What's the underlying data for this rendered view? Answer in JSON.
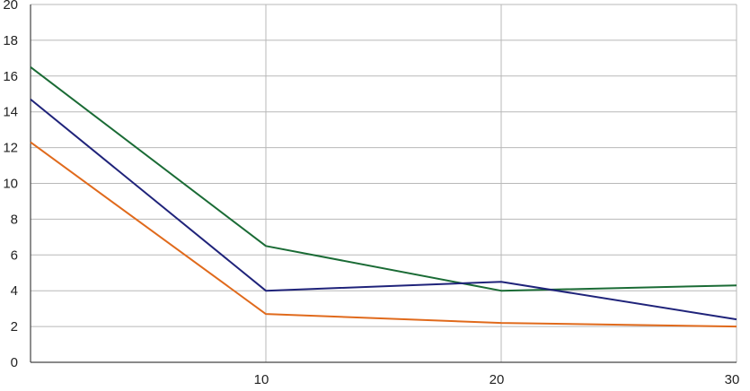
{
  "chart_data": {
    "type": "line",
    "title": "",
    "xlabel": "",
    "ylabel": "",
    "x": [
      0,
      10,
      20,
      30
    ],
    "xlim": [
      0,
      30
    ],
    "ylim": [
      0,
      20
    ],
    "xticks": [
      "10",
      "20",
      "30"
    ],
    "yticks": [
      "0",
      "2",
      "4",
      "6",
      "8",
      "10",
      "12",
      "14",
      "16",
      "18",
      "20"
    ],
    "grid": true,
    "legend": "none",
    "series": [
      {
        "color": "#1a6b35",
        "values": [
          16.5,
          6.5,
          4.0,
          4.3
        ]
      },
      {
        "color": "#1f237a",
        "values": [
          14.7,
          4.0,
          4.5,
          2.4
        ]
      },
      {
        "color": "#e06a1c",
        "values": [
          12.3,
          2.7,
          2.2,
          2.0
        ]
      }
    ]
  }
}
